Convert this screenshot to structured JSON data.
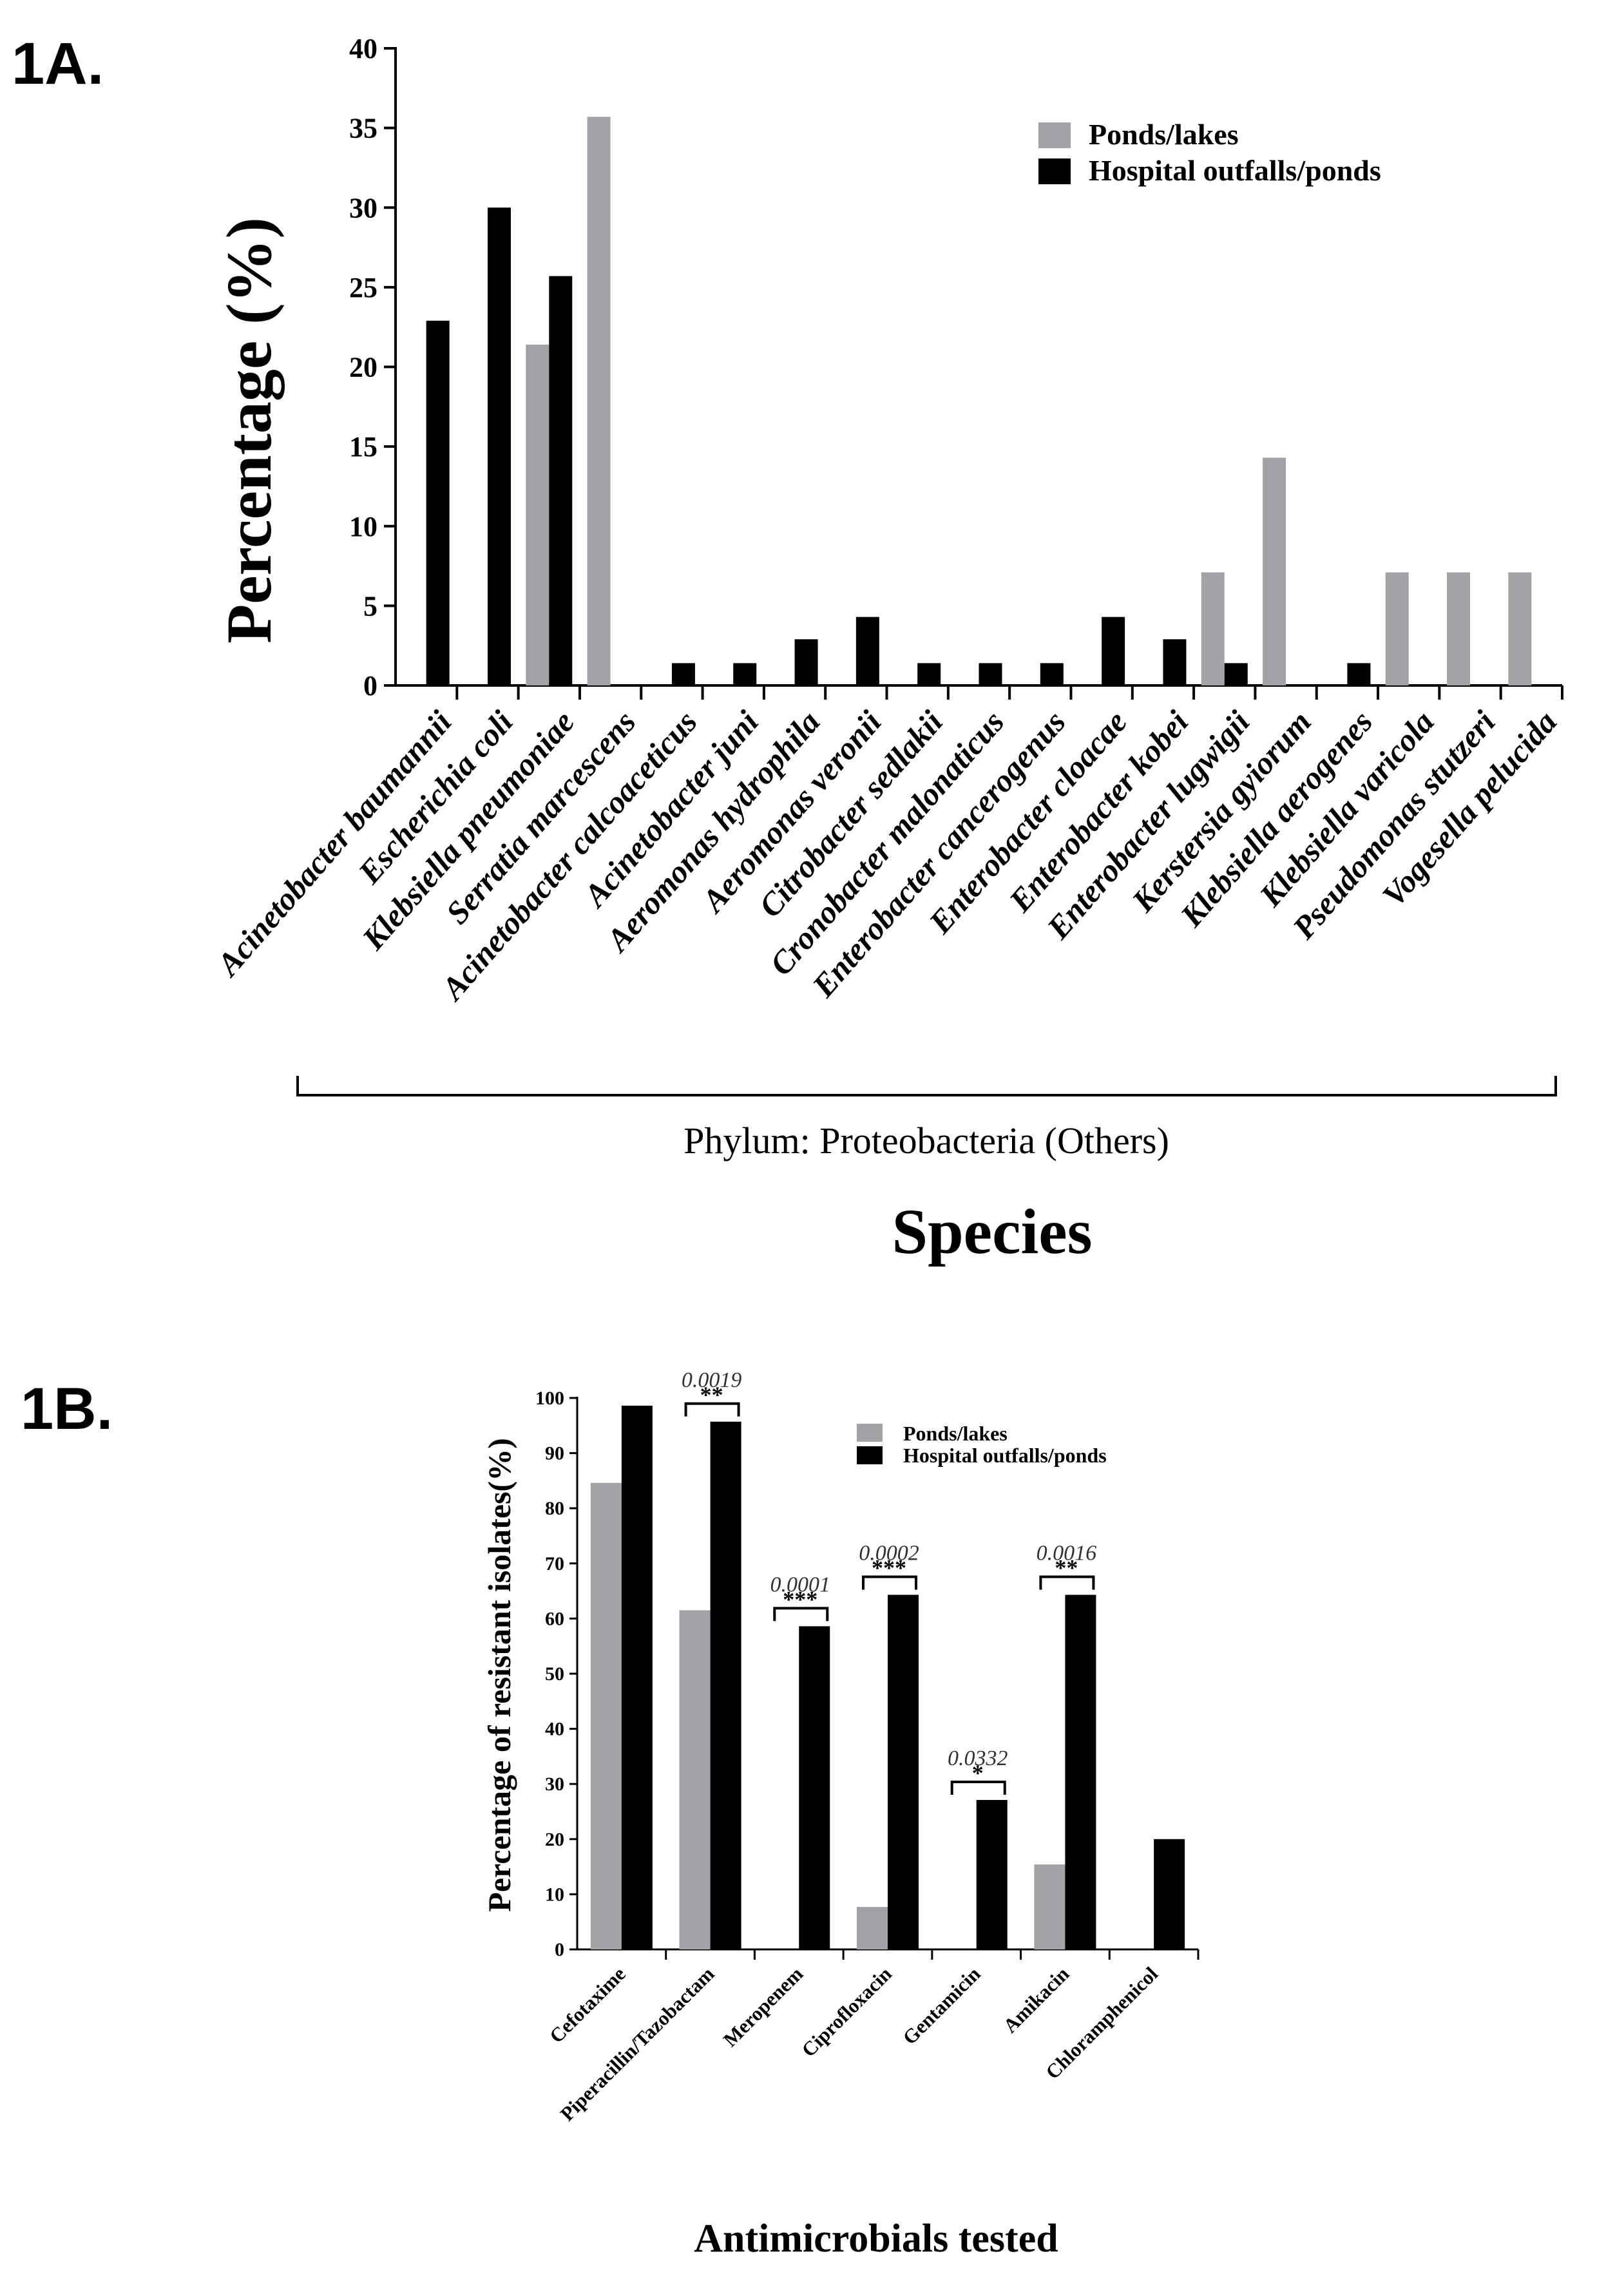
{
  "colors": {
    "pond": "#a2a2a7",
    "hospital": "#000000",
    "axis": "#000000"
  },
  "panel_a": {
    "label": "1A.",
    "group_label": "Phylum: Proteobacteria (Others)",
    "legend": [
      "Ponds/lakes",
      "Hospital outfalls/ponds"
    ]
  },
  "panel_b": {
    "label": "1B.",
    "legend": [
      "Ponds/lakes",
      "Hospital outfalls/ponds"
    ],
    "significance": [
      {
        "category_index": 1,
        "p": "0.0019",
        "stars": "**"
      },
      {
        "category_index": 2,
        "p": "0.0001",
        "stars": "***"
      },
      {
        "category_index": 3,
        "p": "0.0002",
        "stars": "***"
      },
      {
        "category_index": 4,
        "p": "0.0332",
        "stars": "*"
      },
      {
        "category_index": 5,
        "p": "0.0016",
        "stars": "**"
      }
    ]
  },
  "chart_data": [
    {
      "type": "bar",
      "title": "",
      "xlabel": "Species",
      "ylabel": "Percentage (%)",
      "ylim": [
        0,
        40
      ],
      "yticks": [
        0,
        5,
        10,
        15,
        20,
        25,
        30,
        35,
        40
      ],
      "categories": [
        "Acinetobacter baumannii",
        "Escherichia coli",
        "Klebsiella pneumoniae",
        "Serratia marcescens",
        "Acinetobacter calcoaceticus",
        "Acinetobacter juni",
        "Aeromonas hydrophila",
        "Aeromonas veronii",
        "Citrobacter sedlakii",
        "Cronobacter malonaticus",
        "Enterobacter cancerogenus",
        "Enterobacter cloacae",
        "Enterobacter kobei",
        "Enterobacter lugwigii",
        "Kerstersia gyiorum",
        "Klebsiella aerogenes",
        "Klebsiella varicola",
        "Pseudomonas stutzeri",
        "Vogesella pelucida"
      ],
      "series": [
        {
          "name": "Ponds/lakes",
          "values": [
            0,
            0,
            21.4,
            35.7,
            0,
            0,
            0,
            0,
            0,
            0,
            0,
            0,
            0,
            7.1,
            14.3,
            0,
            7.1,
            7.1,
            7.1
          ]
        },
        {
          "name": "Hospital outfalls/ponds",
          "values": [
            22.9,
            30.0,
            25.7,
            0,
            1.4,
            1.4,
            2.9,
            4.3,
            1.4,
            1.4,
            1.4,
            4.3,
            2.9,
            1.4,
            0,
            1.4,
            0,
            0,
            0
          ]
        }
      ]
    },
    {
      "type": "bar",
      "title": "",
      "xlabel": "Antimicrobials tested",
      "ylabel": "Percentage of resistant isolates(%)",
      "ylim": [
        0,
        100
      ],
      "yticks": [
        0,
        10,
        20,
        30,
        40,
        50,
        60,
        70,
        80,
        90,
        100
      ],
      "categories": [
        "Cefotaxime",
        "Piperacillin/Tazobactam",
        "Meropenem",
        "Ciprofloxacin",
        "Gentamicin",
        "Amikacin",
        "Chloramphenicol"
      ],
      "series": [
        {
          "name": "Ponds/lakes",
          "values": [
            84.6,
            61.5,
            0,
            7.7,
            0,
            15.4,
            0
          ]
        },
        {
          "name": "Hospital outfalls/ponds",
          "values": [
            98.6,
            95.7,
            58.6,
            64.3,
            27.1,
            64.3,
            20.0
          ]
        }
      ]
    }
  ]
}
